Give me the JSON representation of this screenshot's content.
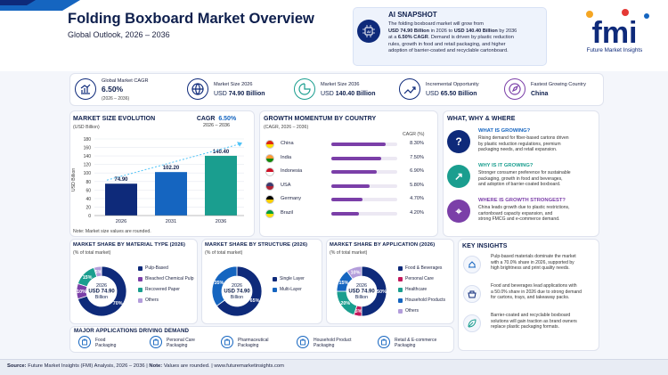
{
  "header": {
    "title": "Folding Boxboard Market Overview",
    "subtitle": "Global Outlook, 2026 – 2036"
  },
  "snapshot": {
    "heading": "AI SNAPSHOT",
    "l1": "The folding boxboard market will grow from",
    "l2a": "USD 74.90 Billion",
    "l2b": " in 2026 to ",
    "l2c": "USD 140.40 Billion",
    "l2d": " by 2036",
    "l3a": "at a ",
    "l3b": "6.50% CAGR",
    "l3c": ". Demand is driven by plastic reduction",
    "l4": "rules, growth in food and retail packaging, and higher",
    "l5": "adoption of barrier-coated and recyclable cartonboard."
  },
  "logo": {
    "name": "fmi",
    "caption": "Future Market Insights"
  },
  "kpis": [
    {
      "label": "Global Market CAGR",
      "value": "6.50%",
      "sub": "(2026 – 2036)",
      "icon": "growth-chart-icon"
    },
    {
      "label": "Market Size 2026",
      "value_prefix": "USD ",
      "value": "74.90 Billion",
      "icon": "globe-icon"
    },
    {
      "label": "Market Size 2036",
      "value_prefix": "USD ",
      "value": "140.40 Billion",
      "icon": "pie-chart-icon"
    },
    {
      "label": "Incremental Opportunity",
      "value_prefix": "USD ",
      "value": "65.50 Billion",
      "icon": "trend-up-icon"
    },
    {
      "label": "Fastest Growing Country",
      "value": "China",
      "icon": "compass-icon"
    }
  ],
  "colors": {
    "navy": "#0e2a7a",
    "blue": "#1565c0",
    "teal": "#1a9e8f",
    "purple": "#7b3fa8",
    "magenta": "#c2185b",
    "lavender": "#b39ddb",
    "orange": "#f5a623",
    "light_blue": "#4fc3f7"
  },
  "chart_data": [
    {
      "type": "bar",
      "title": "MARKET SIZE EVOLUTION",
      "subtitle": "(USD Billion)",
      "ylabel": "USD Billion",
      "categories": [
        "2026",
        "2031",
        "2036"
      ],
      "values": [
        74.9,
        102.2,
        140.4
      ],
      "value_labels": [
        "74.90",
        "102.20",
        "140.40"
      ],
      "ylim": [
        0,
        180
      ],
      "yticks": [
        0,
        20,
        40,
        60,
        80,
        100,
        120,
        140,
        160,
        180
      ],
      "cagr_label": "CAGR",
      "cagr_value": "6.50%",
      "cagr_period": "2026 – 2036",
      "note": "Note: Market size values are rounded."
    },
    {
      "type": "bar",
      "title": "GROWTH MOMENTUM BY COUNTRY",
      "subtitle": "(CAGR, 2026 – 2036)",
      "col_header": "CAGR (%)",
      "categories": [
        "China",
        "India",
        "Indonesia",
        "USA",
        "Germany",
        "Brazil"
      ],
      "values": [
        8.3,
        7.5,
        6.9,
        5.8,
        4.7,
        4.2
      ],
      "value_labels": [
        "8.30%",
        "7.50%",
        "6.90%",
        "5.80%",
        "4.70%",
        "4.20%"
      ]
    },
    {
      "type": "pie",
      "title": "MARKET SHARE BY MATERIAL TYPE (2026)",
      "subtitle": "(% of total market)",
      "center": [
        "2026",
        "USD 74.90",
        "Billion"
      ],
      "labels": [
        "Pulp-Based",
        "Bleached Chemical Pulp",
        "Recovered Paper",
        "Others"
      ],
      "values": [
        70,
        10,
        15,
        5
      ],
      "value_labels": [
        "70%",
        "10%",
        "15%",
        "5%"
      ]
    },
    {
      "type": "pie",
      "title": "MARKET SHARE BY STRUCTURE (2026)",
      "subtitle": "(% of total market)",
      "center": [
        "2026",
        "USD 74.90",
        "Billion"
      ],
      "labels": [
        "Single Layer",
        "Multi-Layer"
      ],
      "values": [
        65,
        35
      ],
      "value_labels": [
        "65%",
        "35%"
      ]
    },
    {
      "type": "pie",
      "title": "MARKET SHARE BY APPLICATION (2026)",
      "subtitle": "(% of total market)",
      "center": [
        "2026",
        "USD 74.90",
        "Billion"
      ],
      "labels": [
        "Food & Beverages",
        "Personal Care",
        "Healthcare",
        "Household Products",
        "Others"
      ],
      "values": [
        50,
        5,
        20,
        15,
        10
      ],
      "value_labels": [
        "50%",
        "5%",
        "20%",
        "15%",
        "10%"
      ]
    }
  ],
  "why": {
    "heading": "WHAT, WHY & WHERE",
    "items": [
      {
        "title": "WHAT IS GROWING?",
        "l1": "Rising demand for fiber-based cartons driven",
        "l2": "by plastic reduction regulations, premium",
        "l3": "packaging needs, and retail expansion."
      },
      {
        "title": "WHY IS IT GROWING?",
        "l1": "Stronger consumer preference for sustainable",
        "l2": "packaging, growth in food and beverages,",
        "l3": "and adoption of barrier-coated boxboard."
      },
      {
        "title": "WHERE IS GROWTH STRONGEST?",
        "l1": "China leads growth due to plastic restrictions,",
        "l2": "cartonboard capacity expansion, and",
        "l3": "strong FMCG and e-commerce demand."
      }
    ]
  },
  "insights": {
    "heading": "KEY INSIGHTS",
    "items": [
      {
        "l1": "Pulp-based materials dominate the market",
        "l2": "with a 70.0% share in 2026, supported by",
        "l3": "high brightness and print quality needs."
      },
      {
        "l1": "Food and beverages lead applications with",
        "l2": "a 50.0% share in 2026 due to strong demand",
        "l3": "for cartons, trays, and takeaway packs."
      },
      {
        "l1": "Barrier-coated and recyclable boxboard",
        "l2": "solutions will gain traction as brand owners",
        "l3": "replace plastic packaging formats."
      }
    ]
  },
  "apps": {
    "heading": "MAJOR APPLICATIONS DRIVING DEMAND",
    "items": [
      {
        "l1": "Food",
        "l2": "Packaging",
        "icon": "food-box-icon"
      },
      {
        "l1": "Personal Care",
        "l2": "Packaging",
        "icon": "lotion-bottle-icon"
      },
      {
        "l1": "Pharmaceutical",
        "l2": "Packaging",
        "icon": "medicine-icon"
      },
      {
        "l1": "Household Product",
        "l2": "Packaging",
        "icon": "detergent-icon"
      },
      {
        "l1": "Retail & E-commerce",
        "l2": "Packaging",
        "icon": "shopping-bag-icon"
      }
    ]
  },
  "footer": {
    "source_label": "Source:",
    "source": " Future Market Insights (FMI) Analysis, 2026 – 2036 | ",
    "note_label": "Note:",
    "note": " Values are rounded.  |  www.futuremarketinsights.com"
  }
}
